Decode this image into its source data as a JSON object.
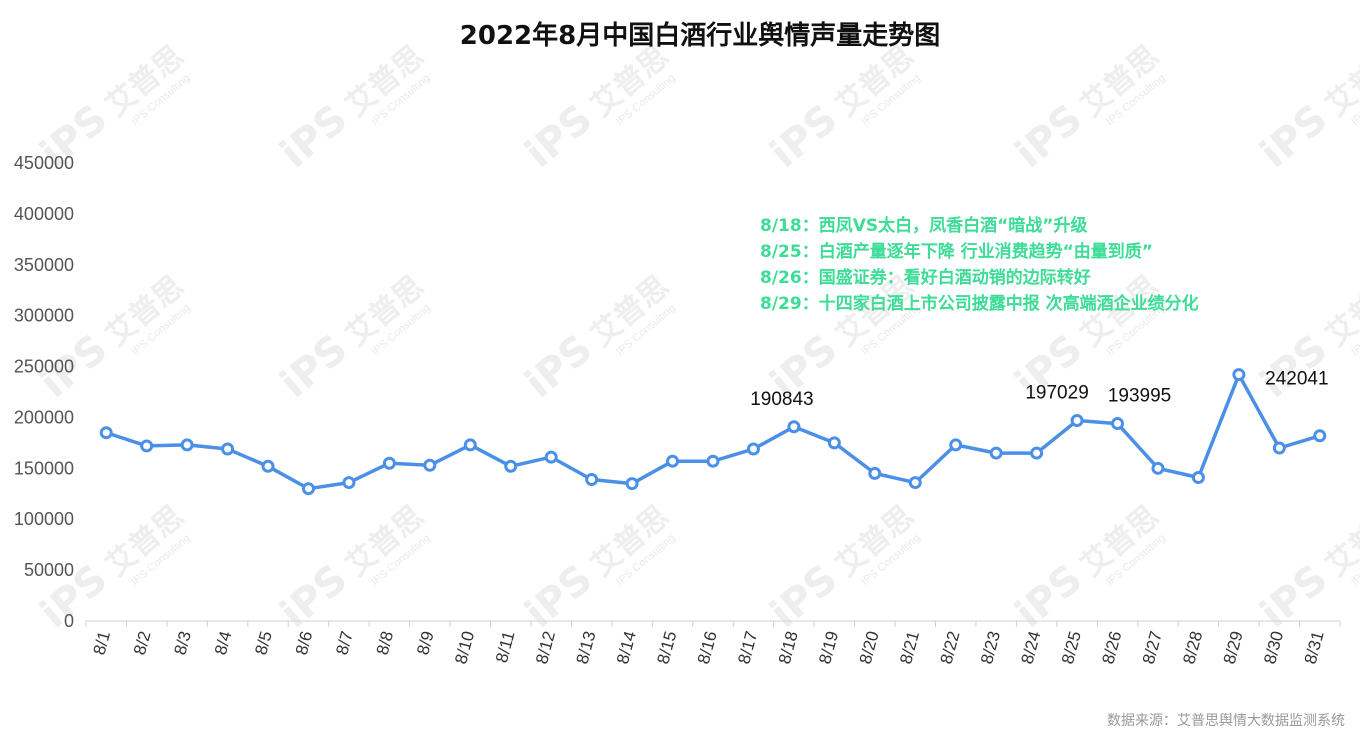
{
  "chart_data": {
    "type": "line",
    "title": "2022年8月中国白酒行业舆情声量走势图",
    "categories": [
      "8/1",
      "8/2",
      "8/3",
      "8/4",
      "8/5",
      "8/6",
      "8/7",
      "8/8",
      "8/9",
      "8/10",
      "8/11",
      "8/12",
      "8/13",
      "8/14",
      "8/15",
      "8/16",
      "8/17",
      "8/18",
      "8/19",
      "8/20",
      "8/21",
      "8/22",
      "8/23",
      "8/24",
      "8/25",
      "8/26",
      "8/27",
      "8/28",
      "8/29",
      "8/30",
      "8/31"
    ],
    "values": [
      185000,
      172000,
      173000,
      169000,
      152000,
      130000,
      136000,
      155000,
      153000,
      173000,
      152000,
      161000,
      139000,
      135000,
      157000,
      157000,
      169000,
      190843,
      175000,
      145000,
      136000,
      173000,
      165000,
      165000,
      197029,
      193995,
      150000,
      141000,
      242041,
      170000,
      182000
    ],
    "ylim": [
      0,
      450000
    ],
    "yticks": [
      "0",
      "50000",
      "100000",
      "150000",
      "200000",
      "250000",
      "300000",
      "350000",
      "400000",
      "450000"
    ],
    "data_labels": [
      {
        "category": "8/18",
        "text": "190843"
      },
      {
        "category": "8/25",
        "text": "197029"
      },
      {
        "category": "8/26",
        "text": "193995"
      },
      {
        "category": "8/29",
        "text": "242041"
      }
    ],
    "annotations": [
      "8/18：西凤VS太白，凤香白酒“暗战”升级",
      "8/25：白酒产量逐年下降 行业消费趋势“由量到质”",
      "8/26：国盛证券：看好白酒动销的边际转好",
      "8/29：十四家白酒上市公司披露中报 次高端酒企业绩分化"
    ],
    "grid": false,
    "legend": "none",
    "line_color": "#4a8fe8",
    "annotation_color": "#3ddc97"
  },
  "source_note": "数据来源：艾普思舆情大数据监测系统",
  "watermark": {
    "brand": "艾普思",
    "logo_text": "iPS",
    "sub": "IPS Consulting"
  }
}
